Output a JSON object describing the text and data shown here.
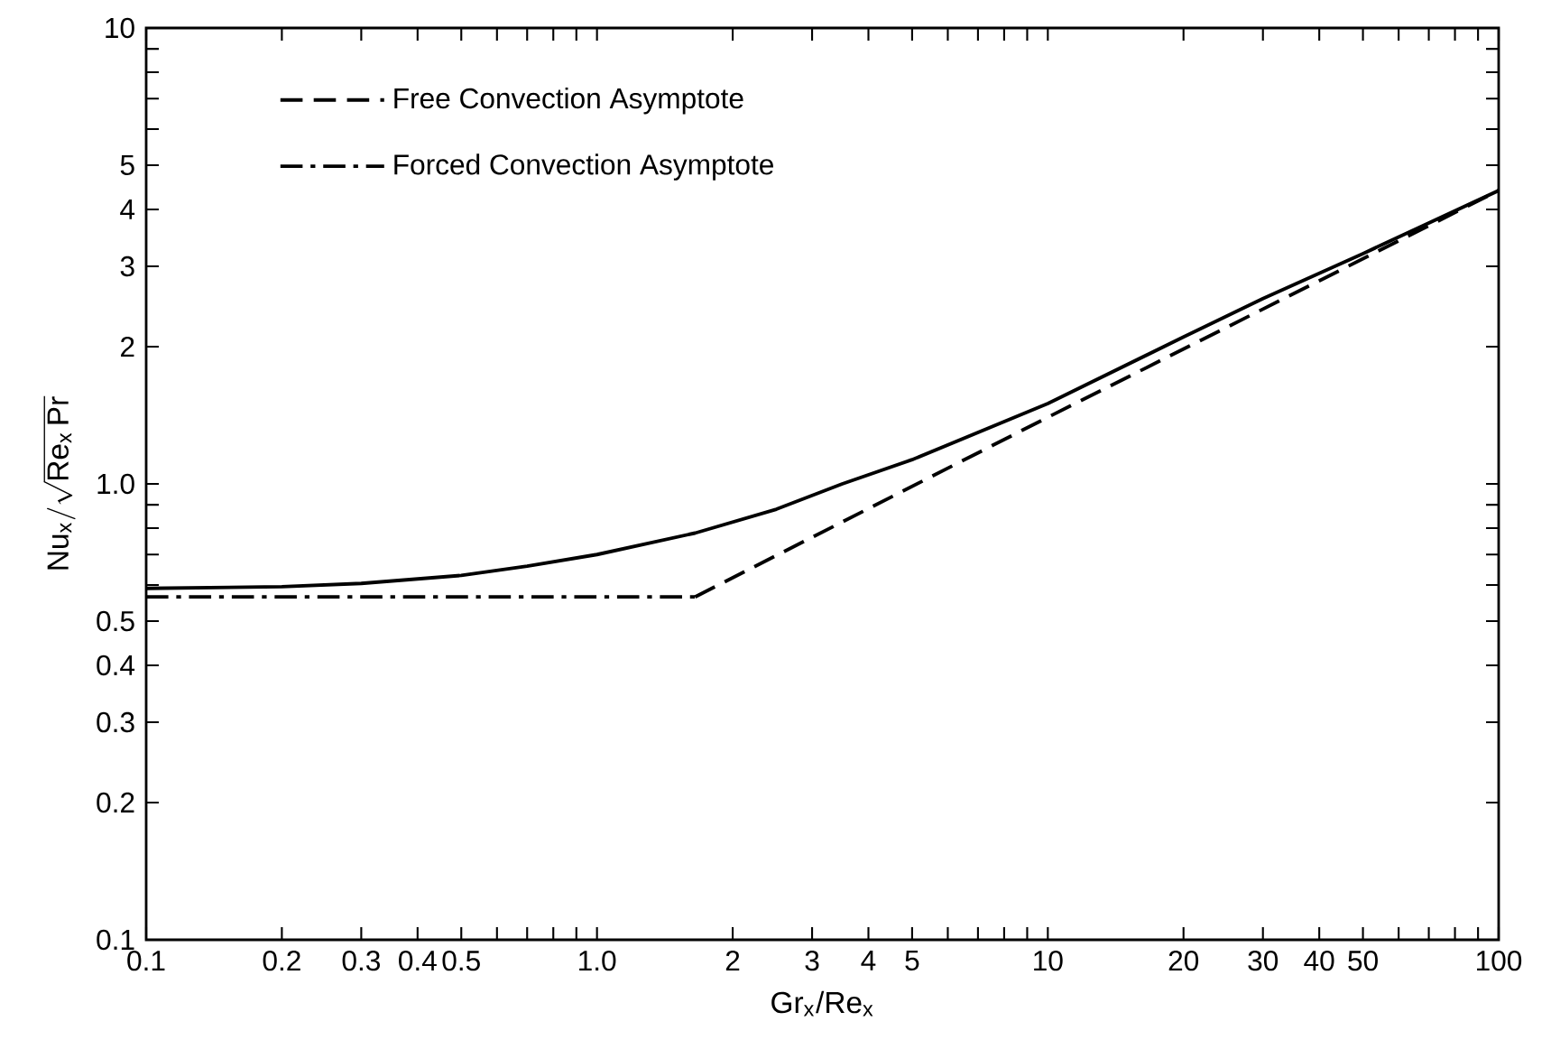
{
  "chart_data": {
    "type": "line",
    "xlabel": "Gr$_{x}$/Re$_{x}$",
    "ylabel": "\\mathrm{Nu_x}/\\sqrt{\\mathrm{Re_x\\,Pr}}",
    "log": "xy",
    "xlim": [
      0.1,
      100
    ],
    "ylim": [
      0.1,
      10
    ],
    "xticks": [
      0.1,
      0.2,
      0.3,
      0.4,
      0.5,
      {
        "value": 0.6,
        "label": null
      },
      {
        "value": 0.7,
        "label": null
      },
      {
        "value": 0.8,
        "label": null
      },
      {
        "value": 0.9,
        "label": null
      },
      {
        "value": 1,
        "label": "1.0"
      },
      2,
      3,
      4,
      5,
      {
        "value": 6,
        "label": null
      },
      {
        "value": 7,
        "label": null
      },
      {
        "value": 8,
        "label": null
      },
      {
        "value": 9,
        "label": null
      },
      10,
      20,
      30,
      40,
      50,
      {
        "value": 60,
        "label": null
      },
      {
        "value": 70,
        "label": null
      },
      {
        "value": 80,
        "label": null
      },
      {
        "value": 90,
        "label": null
      },
      100
    ],
    "yticks": [
      0.1,
      0.2,
      0.3,
      0.4,
      0.5,
      {
        "value": 0.6,
        "label": null
      },
      {
        "value": 0.7,
        "label": null
      },
      {
        "value": 0.8,
        "label": null
      },
      {
        "value": 0.9,
        "label": null
      },
      {
        "value": 1,
        "label": "1.0"
      },
      2,
      3,
      4,
      5,
      {
        "value": 6,
        "label": null
      },
      {
        "value": 7,
        "label": null
      },
      {
        "value": 8,
        "label": null
      },
      {
        "value": 9,
        "label": null
      },
      10
    ],
    "legend": "top left",
    "grid": false,
    "marker": "none",
    "series": [
      {
        "name": "Free Convection Asymptote",
        "color": "#000000",
        "line_style": "dashed",
        "x": [
          1.65,
          10,
          100
        ],
        "values": [
          0.565,
          1.4,
          4.4
        ]
      },
      {
        "name": "Forced Convection Asymptote",
        "color": "#000000",
        "line_style": "dashdot",
        "x": [
          0.1,
          1.65
        ],
        "values": [
          0.565,
          0.565
        ]
      },
      {
        "color": "#000000",
        "line_style": "solid",
        "x": [
          0.1,
          0.2,
          0.3,
          0.5,
          0.7,
          1.0,
          1.65,
          2.5,
          3.5,
          5,
          10,
          20,
          30,
          50,
          100
        ],
        "values": [
          0.59,
          0.595,
          0.605,
          0.63,
          0.66,
          0.7,
          0.78,
          0.88,
          1.0,
          1.13,
          1.5,
          2.1,
          2.55,
          3.2,
          4.4
        ]
      }
    ]
  }
}
